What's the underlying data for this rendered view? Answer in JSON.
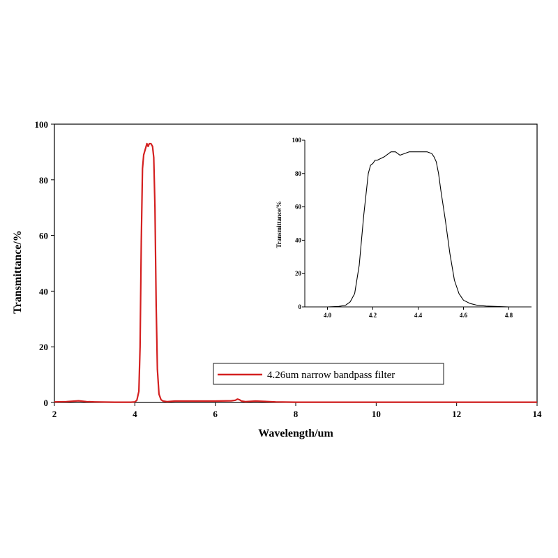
{
  "chart_data": [
    {
      "type": "line",
      "xlabel": "Wavelength/um",
      "ylabel": "Transmittance/%",
      "xlim": [
        2,
        14
      ],
      "ylim": [
        0,
        100
      ],
      "x_ticks": [
        "2",
        "4",
        "6",
        "8",
        "10",
        "12",
        "14"
      ],
      "y_ticks": [
        "0",
        "20",
        "40",
        "60",
        "80",
        "100"
      ],
      "grid": false,
      "legend_position": "lower-right",
      "line_color": "#d42020",
      "series": [
        {
          "name": "4.26um narrow bandpass filter",
          "x": [
            2.0,
            2.3,
            2.6,
            2.8,
            3.0,
            3.5,
            3.9,
            4.0,
            4.05,
            4.1,
            4.13,
            4.16,
            4.19,
            4.22,
            4.26,
            4.3,
            4.33,
            4.36,
            4.4,
            4.44,
            4.47,
            4.5,
            4.53,
            4.56,
            4.6,
            4.65,
            4.7,
            4.8,
            5.0,
            5.5,
            6.0,
            6.4,
            6.5,
            6.55,
            6.6,
            6.65,
            6.75,
            7.0,
            7.5,
            8.0,
            10.0,
            12.0,
            14.0
          ],
          "y": [
            0.2,
            0.3,
            0.6,
            0.3,
            0.2,
            0.1,
            0.1,
            0.2,
            0.8,
            4,
            20,
            58,
            84,
            89,
            91,
            93,
            92,
            93,
            93,
            92,
            88,
            70,
            35,
            12,
            3,
            1,
            0.5,
            0.3,
            0.5,
            0.5,
            0.5,
            0.6,
            0.8,
            1.2,
            1.0,
            0.5,
            0.3,
            0.5,
            0.2,
            0.1,
            0.1,
            0.1,
            0.1
          ]
        }
      ]
    },
    {
      "type": "line",
      "xlabel": "",
      "ylabel": "Transmittance/%",
      "xlim": [
        3.9,
        4.9
      ],
      "ylim": [
        0,
        100
      ],
      "x_ticks": [
        "4.0",
        "4.2",
        "4.4",
        "4.6",
        "4.8"
      ],
      "y_ticks": [
        "0",
        "20",
        "40",
        "60",
        "80",
        "100"
      ],
      "grid": false,
      "line_color": "#000000",
      "series": [
        {
          "x": [
            3.9,
            4.0,
            4.05,
            4.08,
            4.1,
            4.12,
            4.14,
            4.16,
            4.18,
            4.19,
            4.2,
            4.21,
            4.22,
            4.25,
            4.28,
            4.3,
            4.32,
            4.34,
            4.36,
            4.38,
            4.4,
            4.42,
            4.44,
            4.46,
            4.47,
            4.48,
            4.49,
            4.5,
            4.52,
            4.54,
            4.56,
            4.58,
            4.6,
            4.63,
            4.66,
            4.7,
            4.8,
            4.9
          ],
          "y": [
            0,
            0,
            0.3,
            1,
            3,
            8,
            25,
            55,
            80,
            85,
            86,
            88,
            88,
            90,
            93,
            93,
            91,
            92,
            93,
            93,
            93,
            93,
            93,
            92,
            90,
            87,
            80,
            70,
            52,
            32,
            16,
            8,
            4,
            2,
            1,
            0.5,
            0,
            0
          ]
        }
      ]
    }
  ]
}
